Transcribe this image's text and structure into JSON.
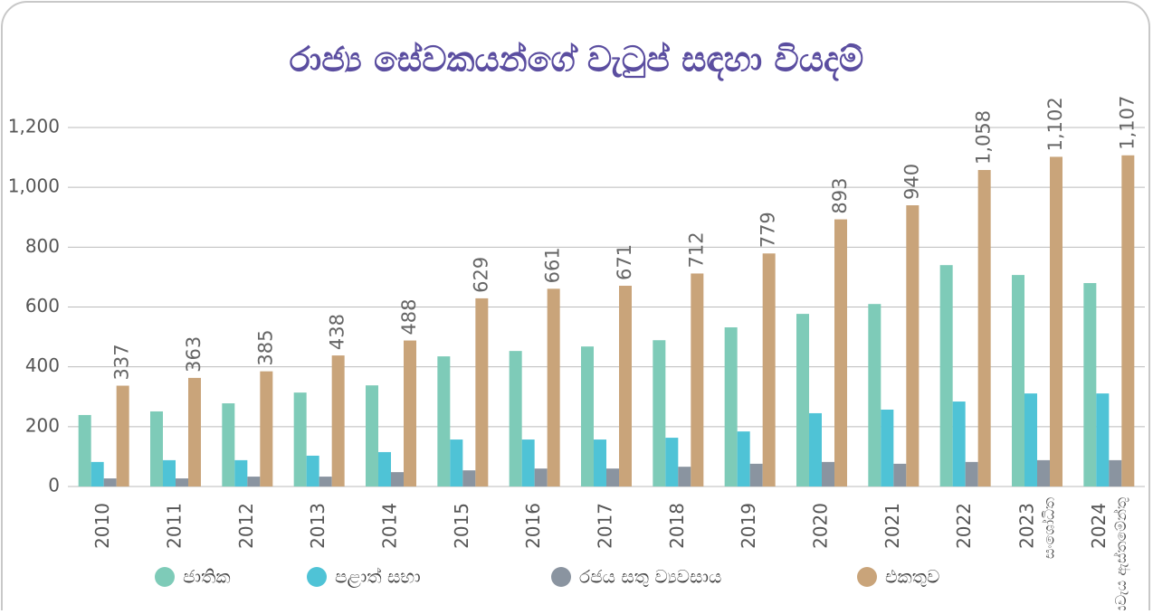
{
  "chart_data": {
    "type": "bar",
    "title": "රාජ්‍ය සේවකයන්ගේ වැටුප් සඳහා වියදම්",
    "categories": [
      "2010",
      "2011",
      "2012",
      "2013",
      "2014",
      "2015",
      "2016",
      "2017",
      "2018",
      "2019",
      "2020",
      "2021",
      "2022",
      "2023",
      "2024"
    ],
    "category_sublabels": [
      null,
      null,
      null,
      null,
      null,
      null,
      null,
      null,
      null,
      null,
      null,
      null,
      null,
      "සංශෝධිත",
      "අයවැය ඇස්තමේන්තු"
    ],
    "series": [
      {
        "name": "ජාතික",
        "color": "#7ecbb8",
        "values": [
          239,
          251,
          278,
          314,
          338,
          435,
          453,
          468,
          489,
          532,
          577,
          610,
          740,
          707,
          680
        ]
      },
      {
        "name": "පළාත් සභා",
        "color": "#4fc3d6",
        "values": [
          82,
          88,
          88,
          103,
          115,
          157,
          157,
          157,
          163,
          184,
          245,
          257,
          284,
          311,
          311
        ]
      },
      {
        "name": "රජය සතු ව්‍යවසාය",
        "color": "#8a94a0",
        "values": [
          27,
          27,
          33,
          33,
          48,
          54,
          60,
          60,
          66,
          76,
          82,
          76,
          82,
          88,
          88
        ]
      },
      {
        "name": "එකතුව",
        "color": "#c9a47a",
        "values": [
          337,
          363,
          385,
          438,
          488,
          629,
          661,
          671,
          712,
          779,
          893,
          940,
          1058,
          1102,
          1107
        ],
        "value_labels": [
          "337",
          "363",
          "385",
          "438",
          "488",
          "629",
          "661",
          "671",
          "712",
          "779",
          "893",
          "940",
          "1,058",
          "1,102",
          "1,107"
        ]
      }
    ],
    "ylim": [
      0,
      1200
    ],
    "yticks": [
      0,
      200,
      400,
      600,
      800,
      {
        "value": 1000,
        "label": "1,000"
      },
      {
        "value": 1200,
        "label": "1,200"
      }
    ],
    "grid": true
  }
}
